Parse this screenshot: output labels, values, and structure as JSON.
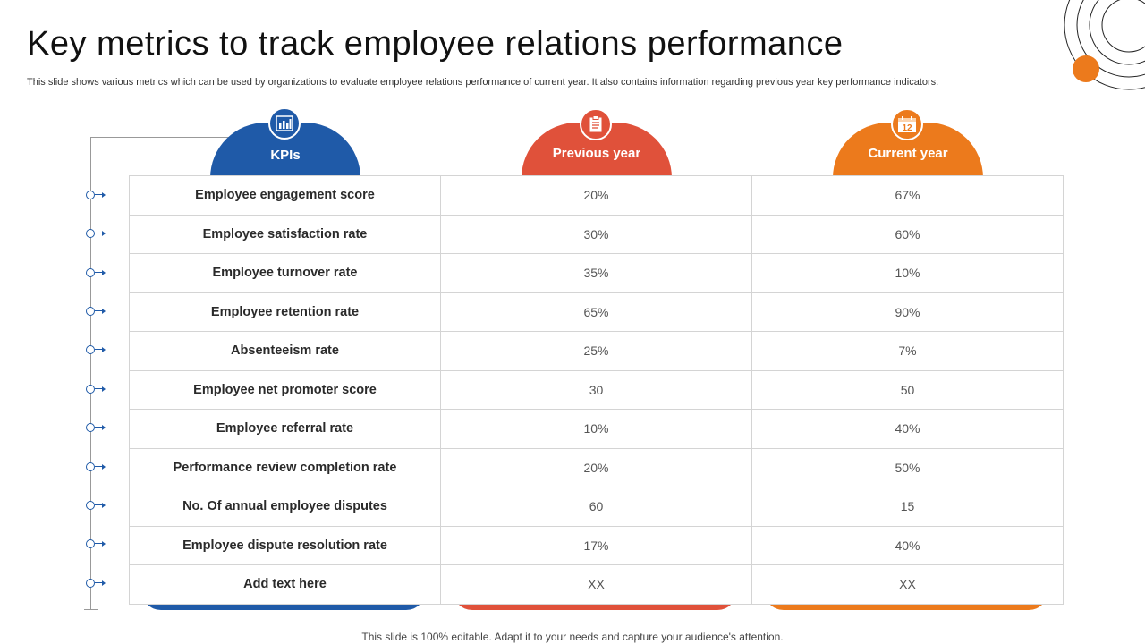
{
  "title": "Key metrics to track employee relations performance",
  "subtitle": "This slide shows various metrics which can be used by organizations to evaluate employee relations performance of current year.  It also contains information regarding previous year key performance indicators.",
  "footer": "This slide is 100% editable. Adapt it to your needs and capture your audience's attention.",
  "colors": {
    "blue": "#1f5aa8",
    "red": "#e0513a",
    "orange": "#ec7a1c"
  },
  "headers": {
    "kpis": {
      "label": "KPIs",
      "icon": "bar-chart-icon"
    },
    "previous": {
      "label": "Previous year",
      "icon": "clipboard-icon"
    },
    "current": {
      "label": "Current year",
      "icon": "calendar-icon",
      "icon_text": "12"
    }
  },
  "rows": [
    {
      "kpi": "Employee engagement score",
      "previous": "20%",
      "current": "67%"
    },
    {
      "kpi": "Employee satisfaction rate",
      "previous": "30%",
      "current": "60%"
    },
    {
      "kpi": "Employee turnover rate",
      "previous": "35%",
      "current": "10%"
    },
    {
      "kpi": "Employee retention rate",
      "previous": "65%",
      "current": "90%"
    },
    {
      "kpi": "Absenteeism rate",
      "previous": "25%",
      "current": "7%"
    },
    {
      "kpi": "Employee net promoter score",
      "previous": "30",
      "current": "50"
    },
    {
      "kpi": "Employee referral rate",
      "previous": "10%",
      "current": "40%"
    },
    {
      "kpi": "Performance review completion rate",
      "previous": "20%",
      "current": "50%"
    },
    {
      "kpi": "No. Of annual employee disputes",
      "previous": "60",
      "current": "15"
    },
    {
      "kpi": "Employee dispute resolution rate",
      "previous": "17%",
      "current": "40%"
    },
    {
      "kpi": "Add text here",
      "previous": "XX",
      "current": "XX"
    }
  ]
}
